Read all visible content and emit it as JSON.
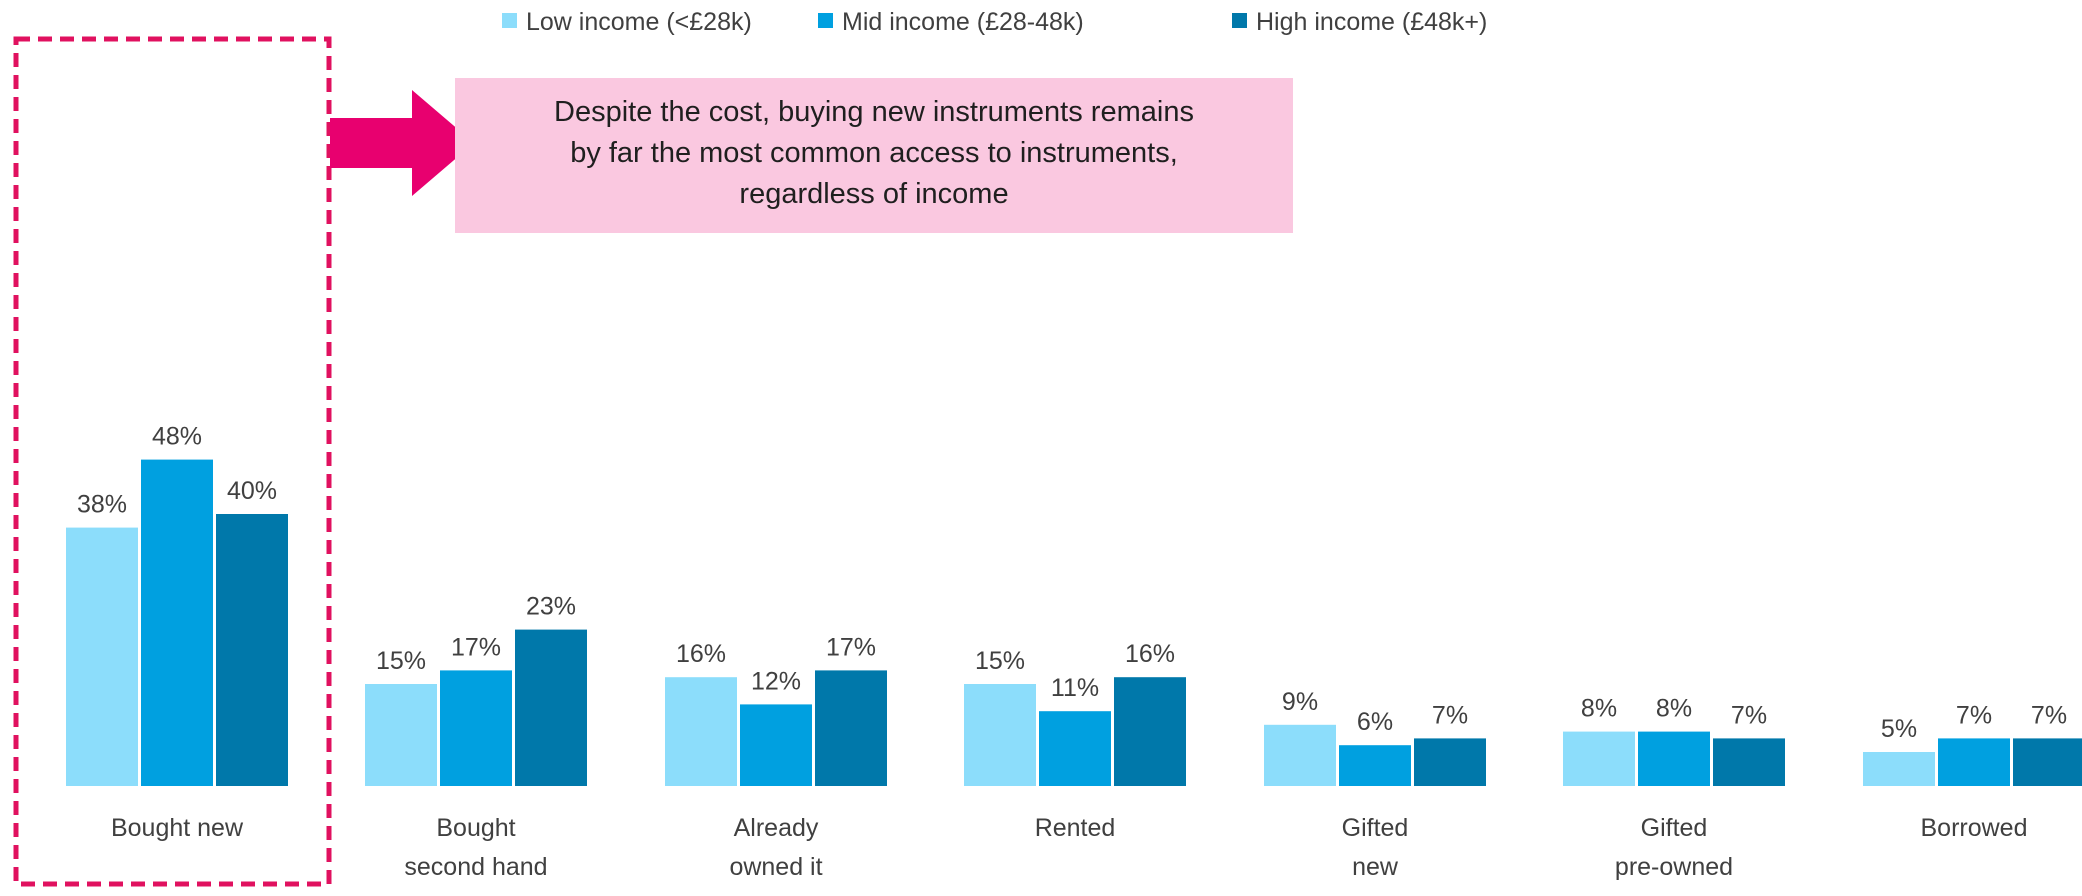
{
  "chart_data": {
    "type": "bar",
    "title": "",
    "xlabel": "",
    "ylabel": "",
    "ylim": [
      0,
      50
    ],
    "grid": false,
    "legend_placement": "top",
    "categories": [
      [
        "Bought new"
      ],
      [
        "Bought",
        "second hand"
      ],
      [
        "Already",
        "owned it"
      ],
      [
        "Rented"
      ],
      [
        "Gifted",
        "new"
      ],
      [
        "Gifted",
        "pre-owned"
      ],
      [
        "Borrowed"
      ]
    ],
    "series": [
      {
        "name": "Low income (<£28k)",
        "color": "#8CDDFB",
        "values": [
          38,
          15,
          16,
          15,
          9,
          8,
          5
        ],
        "labels": [
          "38%",
          "15%",
          "16%",
          "15%",
          "9%",
          "8%",
          "5%"
        ]
      },
      {
        "name": "Mid income (£28-48k)",
        "color": "#00A0E0",
        "values": [
          48,
          17,
          12,
          11,
          6,
          8,
          7
        ],
        "labels": [
          "48%",
          "17%",
          "12%",
          "11%",
          "6%",
          "8%",
          "7%"
        ]
      },
      {
        "name": "High income (£48k+)",
        "color": "#0078AA",
        "values": [
          40,
          23,
          17,
          16,
          7,
          7,
          7
        ],
        "labels": [
          "40%",
          "23%",
          "17%",
          "16%",
          "7%",
          "7%",
          "7%"
        ]
      }
    ],
    "highlight_category": "Bought new",
    "highlight_color": "#E0115F",
    "annotation": {
      "lines": [
        "Despite the cost, buying new instruments remains",
        "by far the most common access to instruments,",
        "regardless of income"
      ],
      "background": "#FAC8E0",
      "arrow_color": "#E8006F"
    }
  }
}
